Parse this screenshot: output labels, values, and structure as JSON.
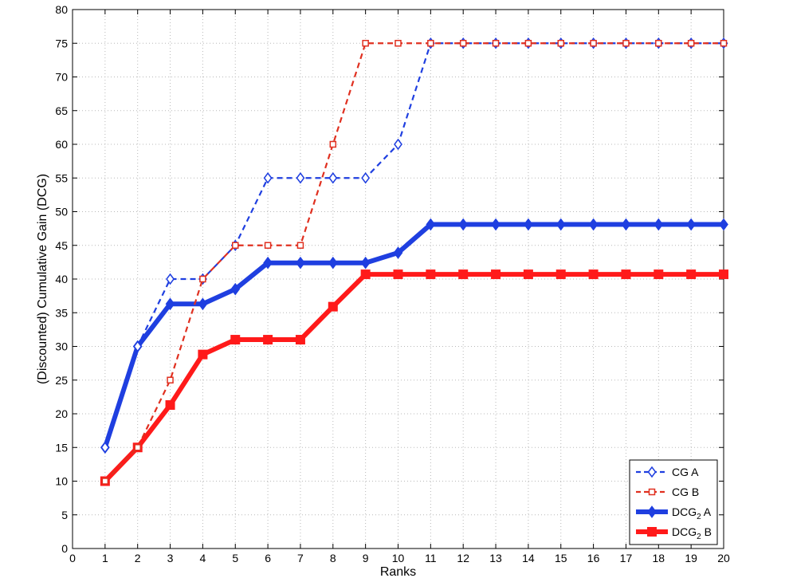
{
  "chart_data": {
    "type": "line",
    "title": "",
    "xlabel": "Ranks",
    "ylabel": "(Discounted) Cumulative Gain (DCG)",
    "xlim": [
      0,
      20
    ],
    "ylim": [
      0,
      80
    ],
    "xticks": [
      0,
      1,
      2,
      3,
      4,
      5,
      6,
      7,
      8,
      9,
      10,
      11,
      12,
      13,
      14,
      15,
      16,
      17,
      18,
      19,
      20
    ],
    "yticks": [
      0,
      5,
      10,
      15,
      20,
      25,
      30,
      35,
      40,
      45,
      50,
      55,
      60,
      65,
      70,
      75,
      80
    ],
    "grid": true,
    "legend_position": "bottom-right",
    "x": [
      1,
      2,
      3,
      4,
      5,
      6,
      7,
      8,
      9,
      10,
      11,
      12,
      13,
      14,
      15,
      16,
      17,
      18,
      19,
      20
    ],
    "series": [
      {
        "name": "CG A",
        "name_main": "CG A",
        "name_sub": "",
        "name_after": "",
        "color": "#1f3fe0",
        "style": "dashed",
        "marker": "diamond-open",
        "values": [
          15,
          30,
          40,
          40,
          45,
          55,
          55,
          55,
          55,
          60,
          75,
          75,
          75,
          75,
          75,
          75,
          75,
          75,
          75,
          75
        ]
      },
      {
        "name": "CG B",
        "name_main": "CG B",
        "name_sub": "",
        "name_after": "",
        "color": "#e03020",
        "style": "dashed",
        "marker": "square-open",
        "values": [
          10,
          15,
          25,
          40,
          45,
          45,
          45,
          60,
          75,
          75,
          75,
          75,
          75,
          75,
          75,
          75,
          75,
          75,
          75,
          75
        ]
      },
      {
        "name": "DCG2 A",
        "name_main": "DCG",
        "name_sub": "2",
        "name_after": " A",
        "color": "#1f3fe0",
        "style": "solid-thick",
        "marker": "diamond-filled",
        "values": [
          15,
          30,
          36.3,
          36.3,
          38.5,
          42.4,
          42.4,
          42.4,
          42.4,
          43.9,
          48.1,
          48.1,
          48.1,
          48.1,
          48.1,
          48.1,
          48.1,
          48.1,
          48.1,
          48.1
        ]
      },
      {
        "name": "DCG2 B",
        "name_main": "DCG",
        "name_sub": "2",
        "name_after": " B",
        "color": "#ff1a1a",
        "style": "solid-thick",
        "marker": "square-filled",
        "values": [
          10,
          15,
          21.3,
          28.8,
          31,
          31,
          31,
          35.9,
          40.7,
          40.7,
          40.7,
          40.7,
          40.7,
          40.7,
          40.7,
          40.7,
          40.7,
          40.7,
          40.7,
          40.7
        ]
      }
    ]
  }
}
